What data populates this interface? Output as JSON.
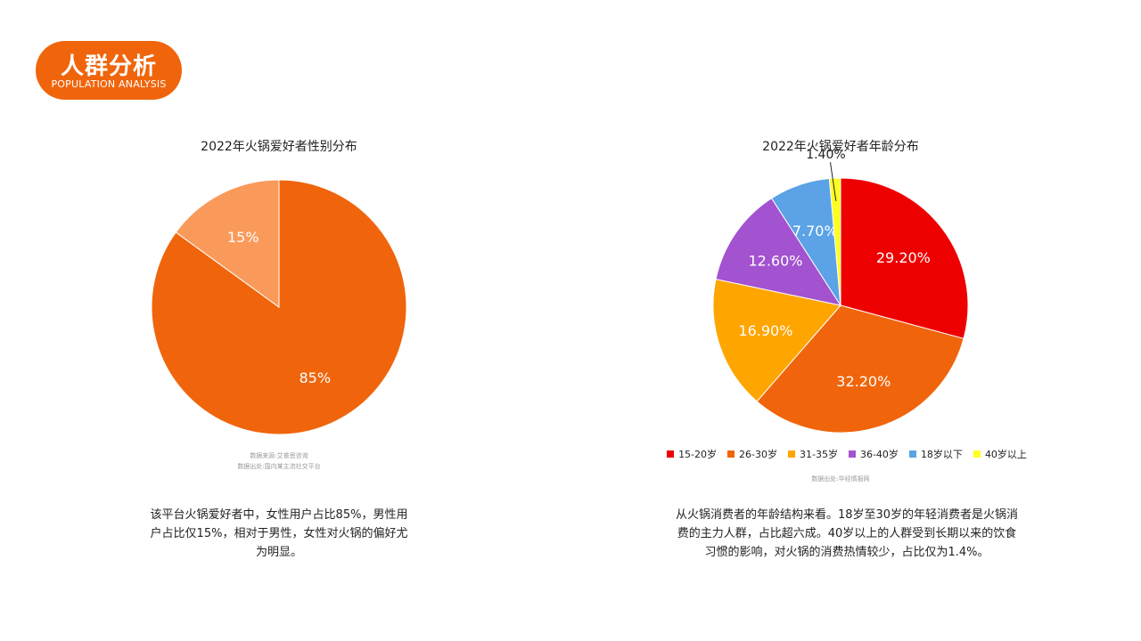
{
  "header": {
    "title": "人群分析",
    "subtitle": "POPULATION ANALYSIS"
  },
  "gender_chart": {
    "source_line1": "数据来源:艾普思咨询",
    "source_line2": "数据出处:国内某主流社交平台",
    "description_lines": [
      "该平台火锅爱好者中，女性用户占比85%，男性用",
      "户占比仅15%，相对于男性，女性对火锅的偏好尤",
      "为明显。"
    ]
  },
  "age_chart": {
    "source_line": "数据出处:华经情报网",
    "description_lines": [
      "从火锅消费者的年龄结构来看。18岁至30岁的年轻消费者是火锅消",
      "费的主力人群，占比超六成。40岁以上的人群受到长期以来的饮食",
      "习惯的影响，对火锅的消费热情较少，占比仅为1.4%。"
    ]
  },
  "chart_data": [
    {
      "type": "pie",
      "title": "2022年火锅爱好者性别分布",
      "slices": [
        {
          "value": 85,
          "label": "85%",
          "color": "#f0650c"
        },
        {
          "value": 15,
          "label": "15%",
          "color": "#fa9a5a"
        }
      ],
      "legend": "none"
    },
    {
      "type": "pie",
      "title": "2022年火锅爱好者年龄分布",
      "slices": [
        {
          "name": "15-20岁",
          "value": 29.2,
          "label": "29.20%",
          "color": "#ee0000"
        },
        {
          "name": "26-30岁",
          "value": 32.2,
          "label": "32.20%",
          "color": "#f0650c"
        },
        {
          "name": "31-35岁",
          "value": 16.9,
          "label": "16.90%",
          "color": "#ffa500"
        },
        {
          "name": "36-40岁",
          "value": 12.6,
          "label": "12.60%",
          "color": "#a352d0"
        },
        {
          "name": "18岁以下",
          "value": 7.7,
          "label": "7.70%",
          "color": "#5ba3e6"
        },
        {
          "name": "40岁以上",
          "value": 1.4,
          "label": "1.40%",
          "color": "#ffff20"
        }
      ],
      "legend": "bottom"
    }
  ]
}
